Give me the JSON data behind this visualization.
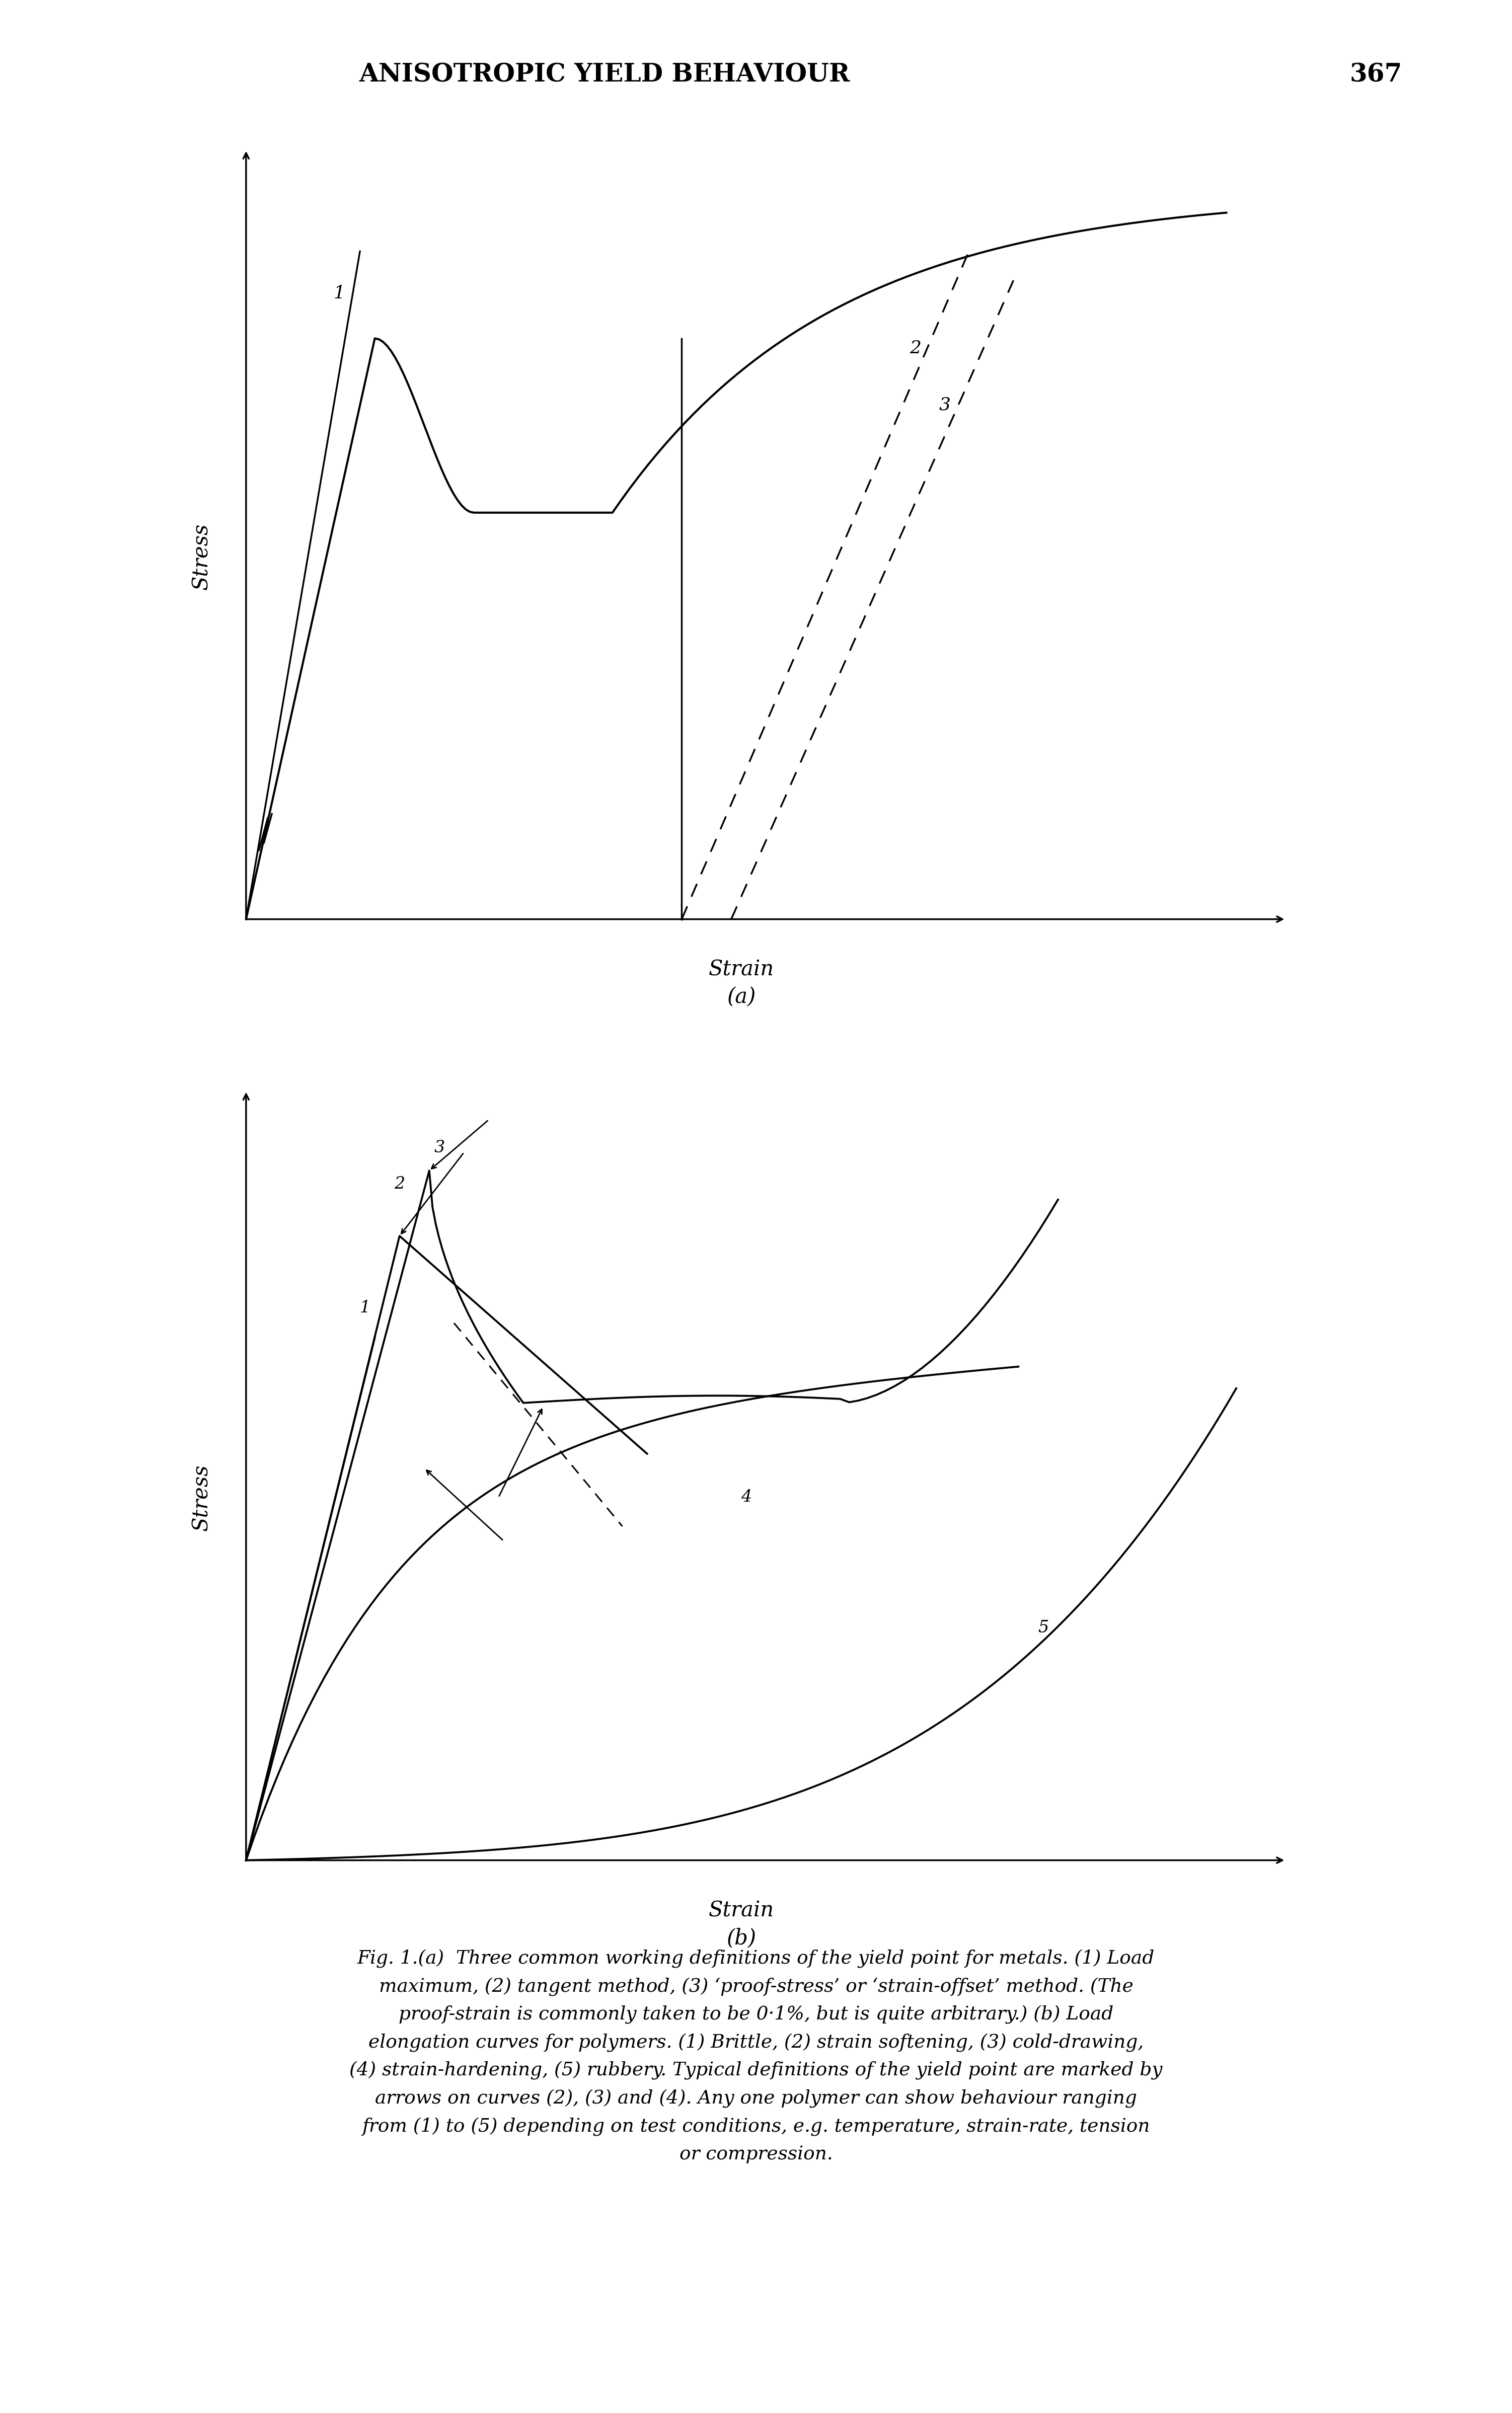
{
  "page_title": "ANISOTROPIC YIELD BEHAVIOUR",
  "page_number": "367",
  "bg_color": "#ffffff",
  "line_color": "#000000",
  "fig_a_xlabel": "Strain",
  "fig_a_ylabel": "Stress",
  "fig_a_label": "(a)",
  "fig_b_xlabel": "Strain",
  "fig_b_ylabel": "Stress",
  "fig_b_label": "(b)",
  "caption_lines": [
    "Fig. 1.(a)  Three common working definitions of the yield point for metals. (1) Load",
    "maximum, (2) tangent method, (3) ‘proof-stress’ or ‘strain-offset’ method. (The",
    "proof-strain is commonly taken to be 0·1%, but is quite arbitrary.) (b) Load",
    "elongation curves for polymers. (1) Brittle, (2) strain softening, (3) cold-drawing,",
    "(4) strain-hardening, (5) rubbery. Typical definitions of the yield point are marked by",
    "arrows on curves (2), (3) and (4). Any one polymer can show behaviour ranging",
    "from (1) to (5) depending on test conditions, e.g. temperature, strain-rate, tension",
    "or compression."
  ]
}
